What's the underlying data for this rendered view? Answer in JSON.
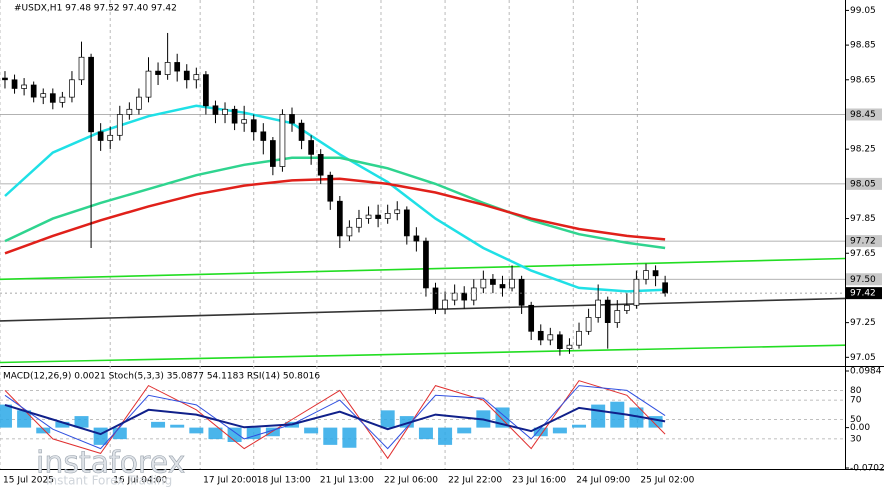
{
  "chart_data": [
    {
      "type": "candlestick",
      "title": "#USDX,H1  97.48 97.52 97.40 97.42",
      "open": [
        98.66,
        98.65,
        98.6,
        98.62,
        98.55,
        98.57,
        98.52,
        98.55,
        98.65,
        98.78,
        98.35,
        98.3,
        98.33,
        98.45,
        98.48,
        98.55,
        98.7,
        98.68,
        98.75,
        98.7,
        98.65,
        98.68,
        98.5,
        98.45,
        98.48,
        98.4,
        98.42,
        98.35,
        98.3,
        98.15,
        98.45,
        98.4,
        98.3,
        98.22,
        98.1,
        97.95,
        97.75,
        97.8,
        97.85,
        97.87,
        97.85,
        97.88,
        97.9,
        97.75,
        97.72,
        97.45,
        97.33,
        97.38,
        97.42,
        97.38,
        97.45,
        97.5,
        97.47,
        97.45,
        97.5,
        97.35,
        97.2,
        97.15,
        97.18,
        97.1,
        97.12,
        97.2,
        97.28,
        97.38,
        97.25,
        97.32,
        97.35,
        97.5,
        97.55,
        97.48
      ],
      "high": [
        98.7,
        98.68,
        98.66,
        98.64,
        98.6,
        98.6,
        98.58,
        98.7,
        98.87,
        98.8,
        98.4,
        98.38,
        98.5,
        98.52,
        98.6,
        98.78,
        98.75,
        98.92,
        98.8,
        98.74,
        98.72,
        98.7,
        98.53,
        98.52,
        98.5,
        98.5,
        98.45,
        98.4,
        98.32,
        98.48,
        98.49,
        98.42,
        98.33,
        98.25,
        98.12,
        97.98,
        97.84,
        97.9,
        97.92,
        97.93,
        97.93,
        97.95,
        97.92,
        97.8,
        97.74,
        97.48,
        97.43,
        97.47,
        97.46,
        97.5,
        97.55,
        97.53,
        97.52,
        97.58,
        97.52,
        97.37,
        97.24,
        97.22,
        97.2,
        97.16,
        97.25,
        97.33,
        97.47,
        97.4,
        97.38,
        97.42,
        97.55,
        97.59,
        97.58,
        97.52
      ],
      "low": [
        98.6,
        98.57,
        98.56,
        98.52,
        98.51,
        98.48,
        98.49,
        98.52,
        98.62,
        97.68,
        98.24,
        98.25,
        98.3,
        98.42,
        98.45,
        98.52,
        98.62,
        98.65,
        98.64,
        98.6,
        98.6,
        98.45,
        98.4,
        98.4,
        98.36,
        98.35,
        98.3,
        98.22,
        98.1,
        98.12,
        98.35,
        98.25,
        98.16,
        98.05,
        97.9,
        97.68,
        97.72,
        97.77,
        97.82,
        97.8,
        97.82,
        97.84,
        97.7,
        97.66,
        97.4,
        97.3,
        97.3,
        97.35,
        97.33,
        97.35,
        97.42,
        97.42,
        97.4,
        97.43,
        97.3,
        97.15,
        97.12,
        97.12,
        97.06,
        97.07,
        97.1,
        97.18,
        97.25,
        97.1,
        97.22,
        97.3,
        97.33,
        97.47,
        97.46,
        97.4
      ],
      "close": [
        98.65,
        98.6,
        98.62,
        98.55,
        98.57,
        98.52,
        98.55,
        98.65,
        98.78,
        98.35,
        98.3,
        98.33,
        98.45,
        98.48,
        98.55,
        98.7,
        98.68,
        98.75,
        98.7,
        98.65,
        98.68,
        98.5,
        98.45,
        98.48,
        98.4,
        98.42,
        98.35,
        98.3,
        98.15,
        98.45,
        98.4,
        98.3,
        98.22,
        98.1,
        97.95,
        97.75,
        97.8,
        97.85,
        97.87,
        97.85,
        97.88,
        97.9,
        97.75,
        97.72,
        97.45,
        97.33,
        97.38,
        97.42,
        97.38,
        97.45,
        97.5,
        97.47,
        97.45,
        97.5,
        97.35,
        97.2,
        97.15,
        97.18,
        97.1,
        97.12,
        97.2,
        97.28,
        97.38,
        97.25,
        97.32,
        97.35,
        97.5,
        97.55,
        97.52,
        97.42
      ],
      "up_color": "#ffffff",
      "down_color": "#000000",
      "series": [
        {
          "color": "#1fe0e6",
          "x": [
            0,
            5,
            10,
            15,
            20,
            25,
            30,
            35,
            40,
            45,
            50,
            55,
            60,
            65,
            69
          ],
          "values": [
            97.98,
            98.23,
            98.35,
            98.44,
            98.5,
            98.46,
            98.4,
            98.22,
            98.06,
            97.85,
            97.68,
            97.55,
            97.45,
            97.43,
            97.44
          ]
        },
        {
          "color": "#2fd48f",
          "x": [
            0,
            5,
            10,
            15,
            20,
            25,
            30,
            35,
            40,
            45,
            50,
            55,
            60,
            65,
            69
          ],
          "values": [
            97.72,
            97.85,
            97.94,
            98.02,
            98.1,
            98.16,
            98.2,
            98.2,
            98.14,
            98.05,
            97.94,
            97.84,
            97.76,
            97.71,
            97.68
          ]
        },
        {
          "color": "#e0201a",
          "x": [
            0,
            5,
            10,
            15,
            20,
            25,
            30,
            35,
            40,
            45,
            50,
            55,
            60,
            65,
            69
          ],
          "values": [
            97.65,
            97.75,
            97.84,
            97.92,
            97.99,
            98.04,
            98.07,
            98.08,
            98.05,
            98.0,
            97.93,
            97.85,
            97.79,
            97.75,
            97.73
          ]
        }
      ],
      "trendlines": [
        {
          "color": "#22dd22",
          "x": [
            -0.52,
            87.8
          ],
          "values": [
            97.5,
            97.62
          ]
        },
        {
          "color": "#333333",
          "x": [
            -0.52,
            87.8
          ],
          "values": [
            97.26,
            97.39
          ]
        },
        {
          "color": "#22dd22",
          "x": [
            -0.52,
            87.8
          ],
          "values": [
            97.02,
            97.12
          ]
        }
      ],
      "levels": [
        98.45,
        98.05,
        97.72,
        {
          "value": 97.5,
          "label": "97.50"
        }
      ],
      "last_price": 97.42,
      "xlim": [
        -0.52,
        87.8
      ],
      "xticks": [
        {
          "value": -0.52,
          "label": "15 Jul 2025"
        },
        {
          "value": 11,
          "label": "16 Jul 04:00"
        },
        {
          "value": 20.4,
          "label": "17 Jul 20:00"
        },
        {
          "value": 26,
          "label": "18 Jul 13:00"
        },
        {
          "value": 32.6,
          "label": "21 Jul 13:00"
        },
        {
          "value": 39.3,
          "label": "22 Jul 06:00"
        },
        {
          "value": 46,
          "label": "22 Jul 22:00"
        },
        {
          "value": 52.7,
          "label": "23 Jul 16:00"
        },
        {
          "value": 59.4,
          "label": "24 Jul 09:00"
        },
        {
          "value": 66.1,
          "label": "25 Jul 02:00"
        }
      ],
      "ylim": [
        97.0,
        99.11
      ],
      "yticks": [
        97.05,
        97.25,
        97.65,
        97.85,
        98.25,
        98.65,
        98.85,
        99.05
      ]
    },
    {
      "type": "oscillator",
      "title": "MACD(12,26,9) 0.0021  Stoch(5,3,3) 35.0877 54.1183  RSI(14) 50.8016",
      "histogram": {
        "color": "#2aa8e8",
        "x": [
          0,
          2,
          4,
          6,
          8,
          10,
          12,
          14,
          16,
          18,
          20,
          22,
          24,
          26,
          28,
          30,
          32,
          34,
          36,
          38,
          40,
          42,
          44,
          46,
          48,
          50,
          52,
          54,
          56,
          58,
          60,
          62,
          64,
          66,
          68
        ],
        "values": [
          0.04,
          0.03,
          -0.01,
          0.01,
          0.02,
          -0.03,
          -0.02,
          0.0,
          0.01,
          0.005,
          -0.01,
          -0.02,
          -0.025,
          -0.02,
          -0.015,
          0.01,
          -0.01,
          -0.03,
          -0.035,
          0.0,
          0.03,
          0.02,
          -0.02,
          -0.03,
          -0.01,
          0.03,
          0.035,
          0.0,
          -0.015,
          -0.01,
          0.005,
          0.04,
          0.045,
          0.035,
          0.02
        ]
      },
      "series": [
        {
          "color": "#e03030",
          "axis": "y2",
          "x": [
            0,
            5,
            10,
            15,
            20,
            25,
            30,
            35,
            40,
            45,
            50,
            55,
            60,
            65,
            69
          ],
          "values": [
            80,
            30,
            15,
            85,
            60,
            20,
            50,
            80,
            10,
            85,
            70,
            20,
            90,
            75,
            35
          ]
        },
        {
          "color": "#3050e0",
          "axis": "y2",
          "x": [
            0,
            5,
            10,
            15,
            20,
            25,
            30,
            35,
            40,
            45,
            50,
            55,
            60,
            65,
            69
          ],
          "values": [
            75,
            40,
            20,
            75,
            65,
            30,
            45,
            70,
            20,
            75,
            72,
            30,
            85,
            80,
            54
          ]
        },
        {
          "color": "#10208a",
          "axis": "y2",
          "x": [
            0,
            5,
            10,
            15,
            20,
            25,
            30,
            35,
            40,
            45,
            50,
            55,
            60,
            65,
            69
          ],
          "values": [
            65,
            50,
            35,
            60,
            55,
            42,
            45,
            58,
            40,
            55,
            50,
            38,
            62,
            55,
            48
          ]
        }
      ],
      "xlim": [
        -0.52,
        87.8
      ],
      "ylim": [
        -0.0702,
        0.0984
      ],
      "yticks": [
        -0.0702,
        {
          "value": 0,
          "label": "0.00"
        },
        0.0984
      ],
      "y2lim": [
        0,
        100
      ],
      "y2ticks": [
        30,
        50,
        70,
        80
      ]
    }
  ],
  "watermark": {
    "brand": "instaforex",
    "tagline": "Instant Forex Trading"
  }
}
